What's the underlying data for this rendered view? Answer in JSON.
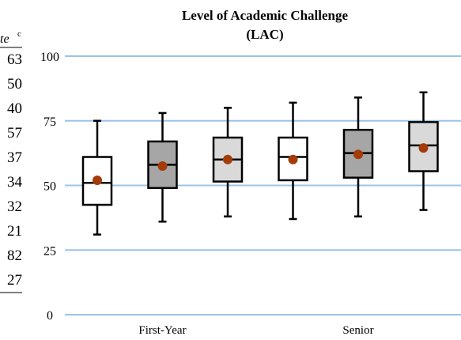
{
  "chart_data": {
    "type": "box",
    "title_line1": "Level of Academic Challenge",
    "title_line2": "(LAC)",
    "xlabel": "",
    "ylabel": "",
    "ylim": [
      0,
      100
    ],
    "yticks": [
      0,
      25,
      50,
      75,
      100
    ],
    "grid": true,
    "group_labels": [
      {
        "label": "First-Year",
        "center_box": 1
      },
      {
        "label": "Senior",
        "center_box": 4
      }
    ],
    "boxes": [
      {
        "fill": "#ffffff",
        "whisker_low": 31,
        "q1": 42.5,
        "median": 51,
        "q3": 61,
        "whisker_high": 75,
        "mean": 52
      },
      {
        "fill": "#a6a6a6",
        "whisker_low": 36,
        "q1": 49,
        "median": 58,
        "q3": 67,
        "whisker_high": 78,
        "mean": 57.5
      },
      {
        "fill": "#d9d9d9",
        "whisker_low": 38,
        "q1": 51.5,
        "median": 60,
        "q3": 68.5,
        "whisker_high": 80,
        "mean": 60
      },
      {
        "fill": "#ffffff",
        "whisker_low": 37,
        "q1": 52,
        "median": 61,
        "q3": 68.5,
        "whisker_high": 82,
        "mean": 60
      },
      {
        "fill": "#a6a6a6",
        "whisker_low": 38,
        "q1": 53,
        "median": 62.5,
        "q3": 71.5,
        "whisker_high": 84,
        "mean": 62
      },
      {
        "fill": "#d9d9d9",
        "whisker_low": 40.5,
        "q1": 55.5,
        "median": 65.5,
        "q3": 74.5,
        "whisker_high": 86,
        "mean": 64.5
      }
    ],
    "mean_color": "#a43c0a",
    "grid_color": "#9dc3e6"
  },
  "side_table": {
    "header_fragment": "te",
    "header_superscript": "c",
    "values": [
      "63",
      "50",
      "40",
      "57",
      "37",
      "34",
      "32",
      "21",
      "82",
      "27"
    ]
  }
}
